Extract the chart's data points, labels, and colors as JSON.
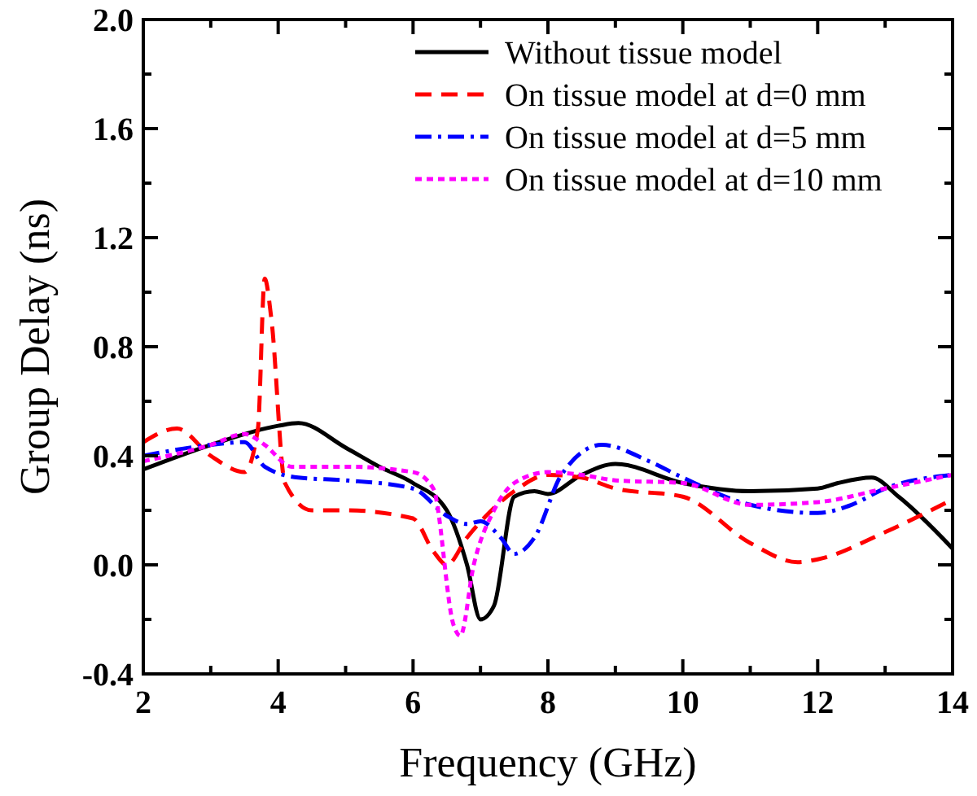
{
  "chart_data": {
    "type": "line",
    "xlabel": "Frequency (GHz)",
    "ylabel": "Group Delay (ns)",
    "xlim": [
      2,
      14
    ],
    "ylim": [
      -0.4,
      2.0
    ],
    "xticks": [
      2,
      {
        "value": 3,
        "label": null
      },
      4,
      {
        "value": 5,
        "label": null
      },
      6,
      {
        "value": 7,
        "label": null
      },
      8,
      {
        "value": 9,
        "label": null
      },
      10,
      {
        "value": 11,
        "label": null
      },
      12,
      {
        "value": 13,
        "label": null
      },
      14
    ],
    "yticks": [
      {
        "value": -0.4,
        "label": "-0.4"
      },
      {
        "value": -0.2,
        "label": null
      },
      {
        "value": 0,
        "label": "0.0"
      },
      {
        "value": 0.2,
        "label": null
      },
      {
        "value": 0.4,
        "label": "0.4"
      },
      {
        "value": 0.6,
        "label": null
      },
      {
        "value": 0.8,
        "label": "0.8"
      },
      {
        "value": 1.0,
        "label": null
      },
      {
        "value": 1.2,
        "label": "1.2"
      },
      {
        "value": 1.4,
        "label": null
      },
      {
        "value": 1.6,
        "label": "1.6"
      },
      {
        "value": 1.8,
        "label": null
      },
      {
        "value": 2.0,
        "label": "2.0"
      }
    ],
    "grid": false,
    "legend": "top right",
    "marker": "none",
    "series": [
      {
        "name": "Without tissue model",
        "color": "#000000",
        "line_style": "solid",
        "x": [
          2,
          3,
          4,
          4.3,
          5,
          5.5,
          6,
          6.5,
          6.8,
          7.0,
          7.2,
          7.5,
          7.8,
          8,
          8.5,
          9,
          10,
          11,
          12,
          12.3,
          12.8,
          13.2,
          14
        ],
        "values": [
          0.35,
          0.44,
          0.51,
          0.52,
          0.43,
          0.36,
          0.3,
          0.2,
          0.0,
          -0.2,
          -0.15,
          0.25,
          0.27,
          0.26,
          0.33,
          0.37,
          0.3,
          0.27,
          0.28,
          0.3,
          0.32,
          0.25,
          0.06
        ]
      },
      {
        "name": "On tissue model at d=0 mm",
        "color": "#ff0000",
        "line_style": "dashed",
        "x": [
          2,
          2.5,
          3,
          3.5,
          3.7,
          3.8,
          3.9,
          4.1,
          4.5,
          5,
          6,
          6.3,
          6.5,
          6.8,
          7.5,
          8,
          8.5,
          9,
          10,
          11,
          11.7,
          12,
          13,
          14
        ],
        "values": [
          0.45,
          0.5,
          0.4,
          0.34,
          0.5,
          1.05,
          0.9,
          0.3,
          0.2,
          0.2,
          0.17,
          0.05,
          0.0,
          0.1,
          0.27,
          0.33,
          0.32,
          0.28,
          0.25,
          0.08,
          0.01,
          0.02,
          0.12,
          0.24
        ]
      },
      {
        "name": "On tissue model at d=5 mm",
        "color": "#0000ff",
        "line_style": "dashdot",
        "x": [
          2,
          3,
          3.5,
          3.8,
          4.3,
          5,
          6,
          6.5,
          6.8,
          7,
          7.3,
          7.5,
          7.8,
          8.2,
          8.8,
          9.5,
          10,
          11,
          12,
          12.5,
          13,
          14
        ],
        "values": [
          0.4,
          0.44,
          0.45,
          0.36,
          0.32,
          0.31,
          0.28,
          0.18,
          0.15,
          0.16,
          0.1,
          0.04,
          0.1,
          0.33,
          0.44,
          0.38,
          0.32,
          0.22,
          0.19,
          0.22,
          0.28,
          0.33
        ]
      },
      {
        "name": "On tissue model at d=10 mm",
        "color": "#ff00ff",
        "line_style": "dotted",
        "x": [
          2,
          3,
          3.5,
          3.8,
          4.2,
          5,
          6,
          6.3,
          6.6,
          6.7,
          6.9,
          7.2,
          7.5,
          8,
          8.5,
          9,
          10,
          11,
          12,
          13,
          14
        ],
        "values": [
          0.38,
          0.44,
          0.48,
          0.44,
          0.36,
          0.36,
          0.34,
          0.28,
          -0.22,
          -0.26,
          0.0,
          0.2,
          0.3,
          0.34,
          0.33,
          0.31,
          0.3,
          0.22,
          0.23,
          0.28,
          0.33
        ]
      }
    ]
  }
}
